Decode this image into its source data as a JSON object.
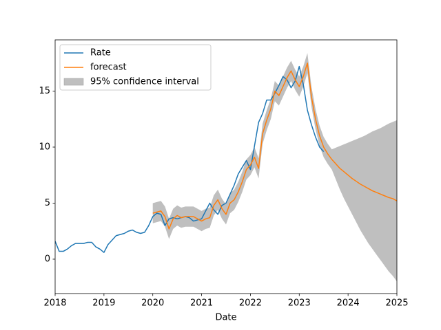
{
  "chart_data": {
    "type": "line",
    "xlabel": "Date",
    "xlim": [
      2018,
      2025
    ],
    "xticks": [
      2018,
      2019,
      2020,
      2021,
      2022,
      2023,
      2024,
      2025
    ],
    "ylim": [
      -3.07,
      19.57
    ],
    "yticks": [
      0,
      5,
      10,
      15
    ],
    "legend": "upper left",
    "series": [
      {
        "name": "Rate",
        "color": "#1f77b4",
        "x": [
          2018,
          2018.083,
          2018.167,
          2018.25,
          2018.333,
          2018.417,
          2018.5,
          2018.583,
          2018.667,
          2018.75,
          2018.833,
          2018.917,
          2019,
          2019.083,
          2019.167,
          2019.25,
          2019.333,
          2019.417,
          2019.5,
          2019.583,
          2019.667,
          2019.75,
          2019.833,
          2019.917,
          2020,
          2020.083,
          2020.167,
          2020.25,
          2020.333,
          2020.417,
          2020.5,
          2020.583,
          2020.667,
          2020.75,
          2020.833,
          2020.917,
          2021,
          2021.083,
          2021.167,
          2021.25,
          2021.333,
          2021.417,
          2021.5,
          2021.583,
          2021.667,
          2021.75,
          2021.833,
          2021.917,
          2022,
          2022.083,
          2022.167,
          2022.25,
          2022.333,
          2022.417,
          2022.5,
          2022.583,
          2022.667,
          2022.75,
          2022.833,
          2022.917,
          2023,
          2023.083,
          2023.167,
          2023.25,
          2023.333,
          2023.417,
          2023.5
        ],
        "values": [
          1.6,
          0.7,
          0.7,
          0.9,
          1.2,
          1.4,
          1.4,
          1.4,
          1.5,
          1.5,
          1.1,
          0.9,
          0.6,
          1.3,
          1.7,
          2.1,
          2.2,
          2.3,
          2.5,
          2.6,
          2.4,
          2.3,
          2.4,
          3.0,
          3.8,
          4.1,
          4.0,
          3.0,
          3.6,
          3.7,
          3.6,
          3.7,
          3.8,
          3.7,
          3.4,
          3.5,
          3.6,
          4.3,
          5.0,
          4.4,
          4.0,
          4.8,
          5.0,
          5.8,
          6.6,
          7.6,
          8.2,
          8.8,
          8.0,
          10.1,
          12.2,
          13.0,
          14.2,
          14.2,
          14.8,
          15.5,
          16.3,
          16.0,
          15.3,
          15.9,
          17.2,
          15.6,
          13.3,
          12.0,
          10.9,
          10.0,
          9.6
        ]
      },
      {
        "name": "forecast",
        "color": "#ff7f0e",
        "x": [
          2020,
          2020.083,
          2020.167,
          2020.25,
          2020.333,
          2020.417,
          2020.5,
          2020.583,
          2020.667,
          2020.75,
          2020.833,
          2020.917,
          2021,
          2021.083,
          2021.167,
          2021.25,
          2021.333,
          2021.417,
          2021.5,
          2021.583,
          2021.667,
          2021.75,
          2021.833,
          2021.917,
          2022,
          2022.083,
          2022.167,
          2022.25,
          2022.333,
          2022.417,
          2022.5,
          2022.583,
          2022.667,
          2022.75,
          2022.833,
          2022.917,
          2023,
          2023.083,
          2023.167,
          2023.25,
          2023.333,
          2023.417,
          2023.5,
          2023.583,
          2023.667,
          2023.75,
          2023.833,
          2023.917,
          2024,
          2024.083,
          2024.167,
          2024.25,
          2024.333,
          2024.417,
          2024.5,
          2024.583,
          2024.667,
          2024.75,
          2024.833,
          2024.917,
          2025
        ],
        "values": [
          4.1,
          4.2,
          4.3,
          3.8,
          2.7,
          3.6,
          3.9,
          3.7,
          3.8,
          3.8,
          3.8,
          3.6,
          3.4,
          3.6,
          3.7,
          4.8,
          5.3,
          4.5,
          4.0,
          5.0,
          5.3,
          6.0,
          6.9,
          8.0,
          8.4,
          9.1,
          8.1,
          11.2,
          12.4,
          13.4,
          15.0,
          14.6,
          15.4,
          16.2,
          16.8,
          16.0,
          15.4,
          16.3,
          17.5,
          14.5,
          12.5,
          11.0,
          10.0,
          9.4,
          8.9,
          8.5,
          8.1,
          7.8,
          7.5,
          7.2,
          6.95,
          6.7,
          6.5,
          6.3,
          6.1,
          5.95,
          5.8,
          5.65,
          5.5,
          5.4,
          5.2
        ]
      },
      {
        "name": "95% confidence interval",
        "color": "#bfbfbf",
        "type": "band",
        "x": [
          2020,
          2020.083,
          2020.167,
          2020.25,
          2020.333,
          2020.417,
          2020.5,
          2020.583,
          2020.667,
          2020.75,
          2020.833,
          2020.917,
          2021,
          2021.083,
          2021.167,
          2021.25,
          2021.333,
          2021.417,
          2021.5,
          2021.583,
          2021.667,
          2021.75,
          2021.833,
          2021.917,
          2022,
          2022.083,
          2022.167,
          2022.25,
          2022.333,
          2022.417,
          2022.5,
          2022.583,
          2022.667,
          2022.75,
          2022.833,
          2022.917,
          2023,
          2023.083,
          2023.167,
          2023.25,
          2023.333,
          2023.417,
          2023.5,
          2023.583,
          2023.667,
          2023.75,
          2023.833,
          2023.917,
          2024,
          2024.083,
          2024.167,
          2024.25,
          2024.333,
          2024.417,
          2024.5,
          2024.583,
          2024.667,
          2024.75,
          2024.833,
          2024.917,
          2025
        ],
        "lower": [
          3.2,
          3.3,
          3.4,
          2.9,
          1.8,
          2.7,
          3.0,
          2.8,
          2.9,
          2.9,
          2.9,
          2.7,
          2.5,
          2.7,
          2.8,
          3.9,
          4.4,
          3.6,
          3.1,
          4.1,
          4.4,
          5.1,
          6.0,
          7.1,
          7.5,
          8.2,
          7.2,
          10.3,
          11.5,
          12.5,
          14.1,
          13.7,
          14.5,
          15.3,
          15.9,
          15.1,
          14.5,
          15.4,
          16.6,
          13.6,
          11.6,
          10.1,
          9.1,
          8.5,
          8.0,
          7.1,
          6.2,
          5.4,
          4.7,
          4.0,
          3.3,
          2.6,
          2.0,
          1.4,
          0.9,
          0.4,
          -0.1,
          -0.6,
          -1.1,
          -1.5,
          -2.0
        ],
        "upper": [
          5.0,
          5.1,
          5.2,
          4.7,
          3.6,
          4.5,
          4.8,
          4.6,
          4.7,
          4.7,
          4.7,
          4.5,
          4.3,
          4.5,
          4.6,
          5.7,
          6.2,
          5.4,
          4.9,
          5.9,
          6.2,
          6.9,
          7.8,
          8.9,
          9.3,
          10.0,
          9.0,
          12.1,
          13.3,
          14.3,
          15.9,
          15.5,
          16.3,
          17.1,
          17.7,
          16.9,
          16.3,
          17.2,
          18.4,
          15.4,
          13.4,
          11.9,
          10.9,
          10.3,
          9.8,
          9.95,
          10.1,
          10.25,
          10.4,
          10.55,
          10.7,
          10.85,
          11.0,
          11.2,
          11.4,
          11.55,
          11.7,
          11.9,
          12.1,
          12.25,
          12.4
        ]
      }
    ]
  }
}
